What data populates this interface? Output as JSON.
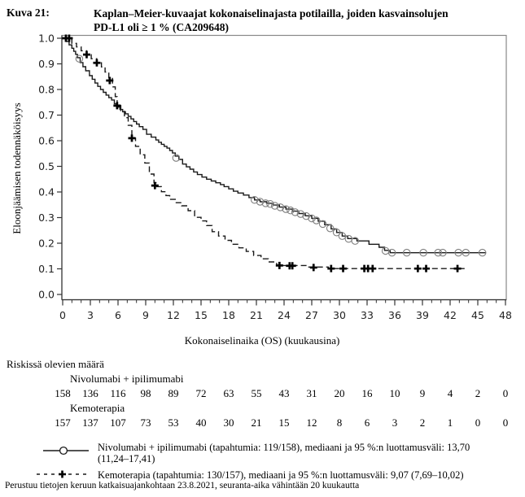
{
  "header": {
    "figure_label": "Kuva 21:",
    "title_lines": [
      "Kaplan–Meier-kuvaajat kokonaiselinajasta potilailla, joiden kasvainsolujen",
      "PD-L1 oli ≥ 1 % (CA209648)"
    ]
  },
  "chart_data": {
    "type": "line",
    "subtype": "kaplan-meier-step",
    "xlabel": "Kokonaiselinaika (OS) (kuukausina)",
    "ylabel": "Eloonjäämisen todennäköisyys",
    "xlim": [
      0,
      48
    ],
    "ylim": [
      0.0,
      1.0
    ],
    "x_ticks": [
      0,
      3,
      6,
      9,
      12,
      15,
      18,
      21,
      24,
      27,
      30,
      33,
      36,
      39,
      42,
      45,
      48
    ],
    "x_minor_tick_every": 1,
    "y_ticks": [
      "1.0",
      "0.9",
      "0.8",
      "0.7",
      "0.6",
      "0.5",
      "0.4",
      "0.3",
      "0.2",
      "0.1",
      "0.0"
    ],
    "grid": false,
    "legend_position": "below",
    "series": [
      {
        "name": "Nivolumabi + ipilimumabi",
        "line_style": "solid",
        "censor_marker": "circle",
        "median": "13,70",
        "ci95": "11,24–17,41",
        "events": "119/158",
        "steps": [
          [
            0,
            1.0
          ],
          [
            0.4,
            0.987
          ],
          [
            0.7,
            0.974
          ],
          [
            1.0,
            0.961
          ],
          [
            1.2,
            0.949
          ],
          [
            1.4,
            0.937
          ],
          [
            1.6,
            0.924
          ],
          [
            1.9,
            0.905
          ],
          [
            2.2,
            0.889
          ],
          [
            2.5,
            0.873
          ],
          [
            2.9,
            0.854
          ],
          [
            3.2,
            0.84
          ],
          [
            3.5,
            0.825
          ],
          [
            3.8,
            0.812
          ],
          [
            4.1,
            0.8
          ],
          [
            4.4,
            0.789
          ],
          [
            4.7,
            0.778
          ],
          [
            5.0,
            0.768
          ],
          [
            5.3,
            0.759
          ],
          [
            5.6,
            0.744
          ],
          [
            5.9,
            0.731
          ],
          [
            6.2,
            0.722
          ],
          [
            6.5,
            0.713
          ],
          [
            6.8,
            0.705
          ],
          [
            7.1,
            0.695
          ],
          [
            7.4,
            0.685
          ],
          [
            7.7,
            0.675
          ],
          [
            8.0,
            0.665
          ],
          [
            8.3,
            0.655
          ],
          [
            8.7,
            0.644
          ],
          [
            9.1,
            0.625
          ],
          [
            9.6,
            0.614
          ],
          [
            10.1,
            0.603
          ],
          [
            10.4,
            0.594
          ],
          [
            10.7,
            0.586
          ],
          [
            11.0,
            0.578
          ],
          [
            11.3,
            0.571
          ],
          [
            11.6,
            0.562
          ],
          [
            11.9,
            0.552
          ],
          [
            12.2,
            0.54
          ],
          [
            12.6,
            0.527
          ],
          [
            13.0,
            0.509
          ],
          [
            13.4,
            0.498
          ],
          [
            13.8,
            0.489
          ],
          [
            14.2,
            0.478
          ],
          [
            14.6,
            0.468
          ],
          [
            15.1,
            0.458
          ],
          [
            15.6,
            0.45
          ],
          [
            16.1,
            0.443
          ],
          [
            16.6,
            0.436
          ],
          [
            17.1,
            0.429
          ],
          [
            17.5,
            0.421
          ],
          [
            18.0,
            0.412
          ],
          [
            18.5,
            0.403
          ],
          [
            19.0,
            0.396
          ],
          [
            19.6,
            0.388
          ],
          [
            20.2,
            0.378
          ],
          [
            20.8,
            0.369
          ],
          [
            21.4,
            0.362
          ],
          [
            22.1,
            0.356
          ],
          [
            22.8,
            0.349
          ],
          [
            23.5,
            0.341
          ],
          [
            24.2,
            0.333
          ],
          [
            24.9,
            0.325
          ],
          [
            25.6,
            0.316
          ],
          [
            26.3,
            0.307
          ],
          [
            27.0,
            0.297
          ],
          [
            27.7,
            0.286
          ],
          [
            28.4,
            0.272
          ],
          [
            29.1,
            0.256
          ],
          [
            29.7,
            0.242
          ],
          [
            30.3,
            0.228
          ],
          [
            30.9,
            0.218
          ],
          [
            31.9,
            0.209
          ],
          [
            33.2,
            0.196
          ],
          [
            34.3,
            0.184
          ],
          [
            34.9,
            0.172
          ],
          [
            35.5,
            0.163
          ],
          [
            45.9,
            0.163
          ]
        ],
        "censor_marks": [
          [
            1.8,
            0.92
          ],
          [
            12.3,
            0.533
          ],
          [
            20.8,
            0.369
          ],
          [
            21.4,
            0.362
          ],
          [
            22.0,
            0.356
          ],
          [
            22.5,
            0.353
          ],
          [
            23.0,
            0.346
          ],
          [
            23.6,
            0.34
          ],
          [
            24.2,
            0.333
          ],
          [
            24.7,
            0.328
          ],
          [
            25.2,
            0.321
          ],
          [
            25.8,
            0.314
          ],
          [
            26.4,
            0.306
          ],
          [
            27.0,
            0.297
          ],
          [
            27.5,
            0.289
          ],
          [
            28.2,
            0.275
          ],
          [
            29.0,
            0.258
          ],
          [
            29.7,
            0.242
          ],
          [
            30.3,
            0.228
          ],
          [
            31.0,
            0.217
          ],
          [
            31.7,
            0.209
          ],
          [
            35.0,
            0.17
          ],
          [
            35.7,
            0.163
          ],
          [
            37.3,
            0.163
          ],
          [
            39.1,
            0.163
          ],
          [
            40.7,
            0.163
          ],
          [
            41.2,
            0.163
          ],
          [
            42.9,
            0.163
          ],
          [
            43.7,
            0.163
          ],
          [
            45.5,
            0.163
          ]
        ]
      },
      {
        "name": "Kemoterapia",
        "line_style": "dashed",
        "censor_marker": "plus",
        "median": "9,07",
        "ci95": "7,69–10,02",
        "events": "130/157",
        "steps": [
          [
            0,
            1.0
          ],
          [
            1.0,
            0.98
          ],
          [
            1.5,
            0.966
          ],
          [
            2.0,
            0.951
          ],
          [
            2.6,
            0.936
          ],
          [
            3.1,
            0.92
          ],
          [
            3.7,
            0.904
          ],
          [
            4.2,
            0.888
          ],
          [
            4.6,
            0.868
          ],
          [
            5.0,
            0.846
          ],
          [
            5.4,
            0.81
          ],
          [
            5.7,
            0.772
          ],
          [
            5.9,
            0.737
          ],
          [
            6.3,
            0.715
          ],
          [
            6.7,
            0.69
          ],
          [
            7.1,
            0.66
          ],
          [
            7.5,
            0.61
          ],
          [
            7.9,
            0.578
          ],
          [
            8.4,
            0.545
          ],
          [
            8.9,
            0.513
          ],
          [
            9.4,
            0.47
          ],
          [
            9.9,
            0.436
          ],
          [
            10.2,
            0.421
          ],
          [
            10.7,
            0.401
          ],
          [
            11.2,
            0.386
          ],
          [
            11.6,
            0.371
          ],
          [
            12.2,
            0.358
          ],
          [
            12.9,
            0.346
          ],
          [
            13.6,
            0.327
          ],
          [
            14.3,
            0.301
          ],
          [
            15.0,
            0.287
          ],
          [
            15.6,
            0.269
          ],
          [
            16.2,
            0.245
          ],
          [
            16.9,
            0.228
          ],
          [
            17.6,
            0.211
          ],
          [
            18.3,
            0.196
          ],
          [
            19.1,
            0.182
          ],
          [
            19.9,
            0.168
          ],
          [
            20.7,
            0.152
          ],
          [
            21.5,
            0.139
          ],
          [
            22.3,
            0.127
          ],
          [
            23.2,
            0.113
          ],
          [
            26.5,
            0.107
          ],
          [
            28.8,
            0.101
          ],
          [
            43.8,
            0.101
          ]
        ],
        "censor_marks": [
          [
            0.35,
            1.0
          ],
          [
            0.7,
            1.0
          ],
          [
            2.6,
            0.936
          ],
          [
            3.7,
            0.904
          ],
          [
            5.1,
            0.835
          ],
          [
            5.9,
            0.737
          ],
          [
            7.5,
            0.61
          ],
          [
            10.0,
            0.425
          ],
          [
            23.5,
            0.113
          ],
          [
            24.6,
            0.112
          ],
          [
            24.9,
            0.112
          ],
          [
            27.2,
            0.105
          ],
          [
            29.1,
            0.101
          ],
          [
            30.4,
            0.101
          ],
          [
            32.7,
            0.101
          ],
          [
            33.1,
            0.101
          ],
          [
            33.6,
            0.101
          ],
          [
            38.5,
            0.101
          ],
          [
            39.4,
            0.101
          ],
          [
            42.8,
            0.101
          ]
        ]
      }
    ]
  },
  "risk_table": {
    "title": "Riskissä olevien määrä",
    "timepoints": [
      0,
      3,
      6,
      9,
      12,
      15,
      18,
      21,
      24,
      27,
      30,
      33,
      36,
      39,
      42,
      45,
      48
    ],
    "groups": [
      {
        "label": "Nivolumabi + ipilimumabi",
        "values": [
          158,
          136,
          116,
          98,
          89,
          72,
          63,
          55,
          43,
          31,
          20,
          16,
          10,
          9,
          4,
          2,
          0
        ]
      },
      {
        "label": "Kemoterapia",
        "values": [
          157,
          137,
          107,
          73,
          53,
          40,
          30,
          21,
          15,
          12,
          8,
          6,
          3,
          2,
          1,
          0,
          0
        ]
      }
    ]
  },
  "legend": [
    {
      "symbol": "solid-line-circle",
      "lines": [
        "Nivolumabi + ipilimumabi (tapahtumia: 119/158), mediaani ja 95 %:n luottamusväli: 13,70",
        "(11,24–17,41)"
      ]
    },
    {
      "symbol": "dashed-line-plus",
      "lines": [
        "Kemoterapia (tapahtumia: 130/157), mediaani ja 95 %:n luottamusväli: 9,07 (7,69–10,02)"
      ]
    }
  ],
  "footer": "Perustuu tietojen keruun katkaisuajankohtaan 23.8.2021, seuranta-aika vähintään 20 kuukautta",
  "colors": {
    "curve": "#1a1a1a",
    "frame": "#888888",
    "axis_ticks": "#333333",
    "tick_text": "#222222",
    "censor_circle_stroke": "#808080",
    "censor_plus": "#000000"
  }
}
